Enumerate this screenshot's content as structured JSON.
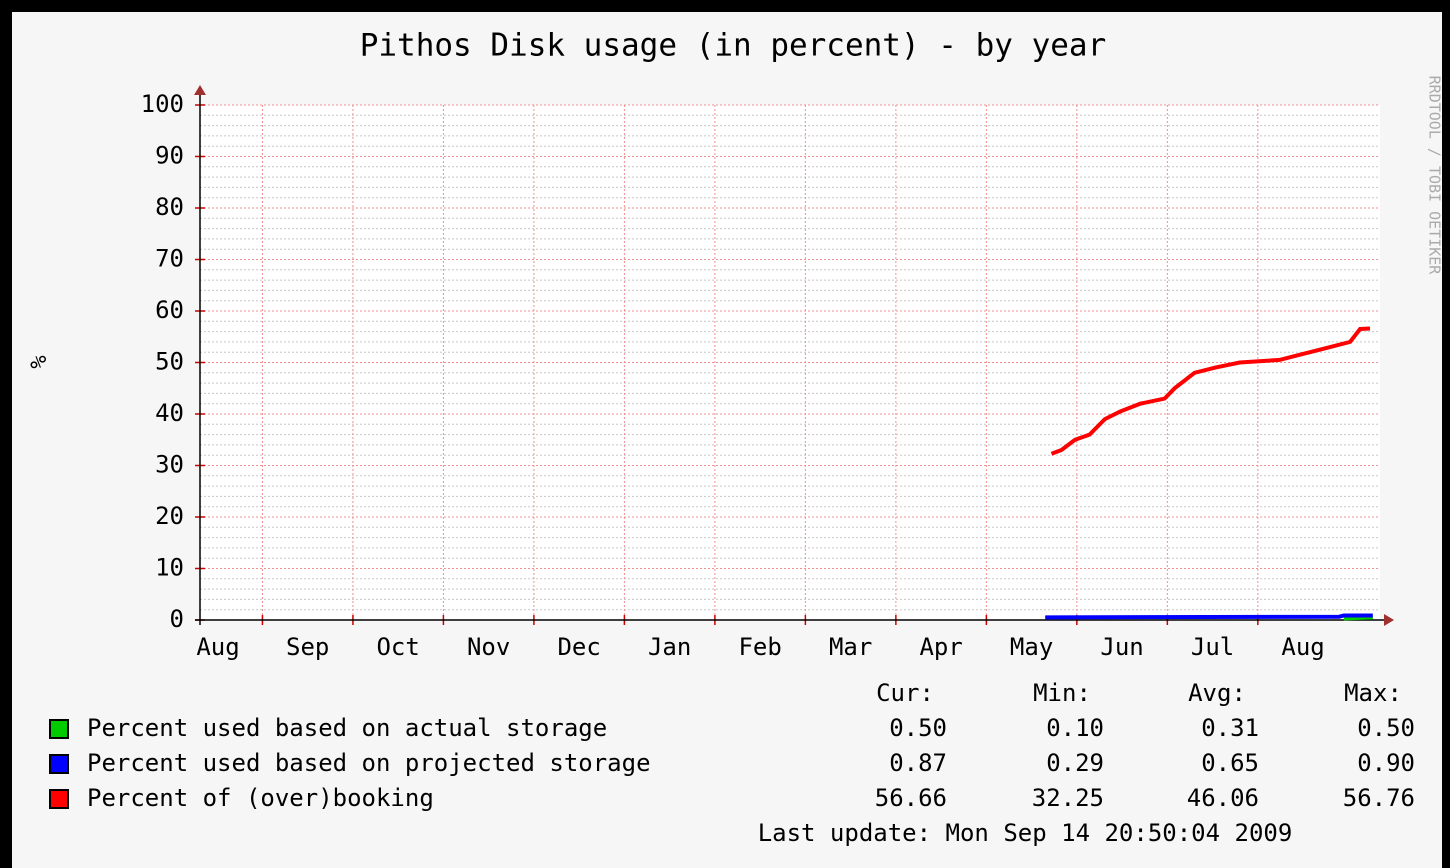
{
  "chart_data": {
    "type": "line",
    "title": "Pithos Disk usage (in percent) - by year",
    "y_label": "%",
    "watermark": "RRDTOOL / TOBI OETIKER",
    "categories": [
      "Aug",
      "Sep",
      "Oct",
      "Nov",
      "Dec",
      "Jan",
      "Feb",
      "Mar",
      "Apr",
      "May",
      "Jun",
      "Jul",
      "Aug"
    ],
    "xlim": [
      0.31,
      13.35
    ],
    "ylim": [
      0,
      100
    ],
    "yticks": [
      0,
      10,
      20,
      30,
      40,
      50,
      60,
      70,
      80,
      90,
      100
    ],
    "yminor": [
      2,
      4,
      6,
      8,
      12,
      14,
      16,
      18,
      22,
      24,
      26,
      28,
      32,
      34,
      36,
      38,
      42,
      44,
      46,
      48,
      52,
      54,
      56,
      58,
      62,
      64,
      66,
      68,
      72,
      74,
      76,
      78,
      82,
      84,
      86,
      88,
      92,
      94,
      96,
      98
    ],
    "grid": true,
    "series": [
      {
        "name": "Percent used based on actual storage",
        "color": "#00cc00",
        "x": [
          12.95,
          13.27
        ],
        "values": [
          0.3,
          0.5
        ]
      },
      {
        "name": "Percent used based on projected storage",
        "color": "#0000ff",
        "x": [
          9.65,
          12.9,
          12.95,
          13.27
        ],
        "values": [
          0.5,
          0.65,
          0.87,
          0.87
        ]
      },
      {
        "name": "Percent of (over)booking",
        "color": "#ff0000",
        "x": [
          9.72,
          9.83,
          9.98,
          10.14,
          10.31,
          10.48,
          10.7,
          10.97,
          11.08,
          11.3,
          11.53,
          11.8,
          12.24,
          12.46,
          12.69,
          13.02,
          13.13,
          13.24
        ],
        "values": [
          32.3,
          33,
          35,
          36,
          39,
          40.5,
          42,
          43,
          45,
          48,
          49,
          50,
          50.5,
          51.5,
          52.5,
          54,
          56.5,
          56.6
        ]
      }
    ],
    "stats": {
      "headers": [
        "Cur:",
        "Min:",
        "Avg:",
        "Max:"
      ],
      "rows": [
        [
          "0.50",
          "0.10",
          "0.31",
          "0.50"
        ],
        [
          "0.87",
          "0.29",
          "0.65",
          "0.90"
        ],
        [
          "56.66",
          "32.25",
          "46.06",
          "56.76"
        ]
      ]
    },
    "last_update": "Last update: Mon Sep 14 20:50:04 2009"
  }
}
